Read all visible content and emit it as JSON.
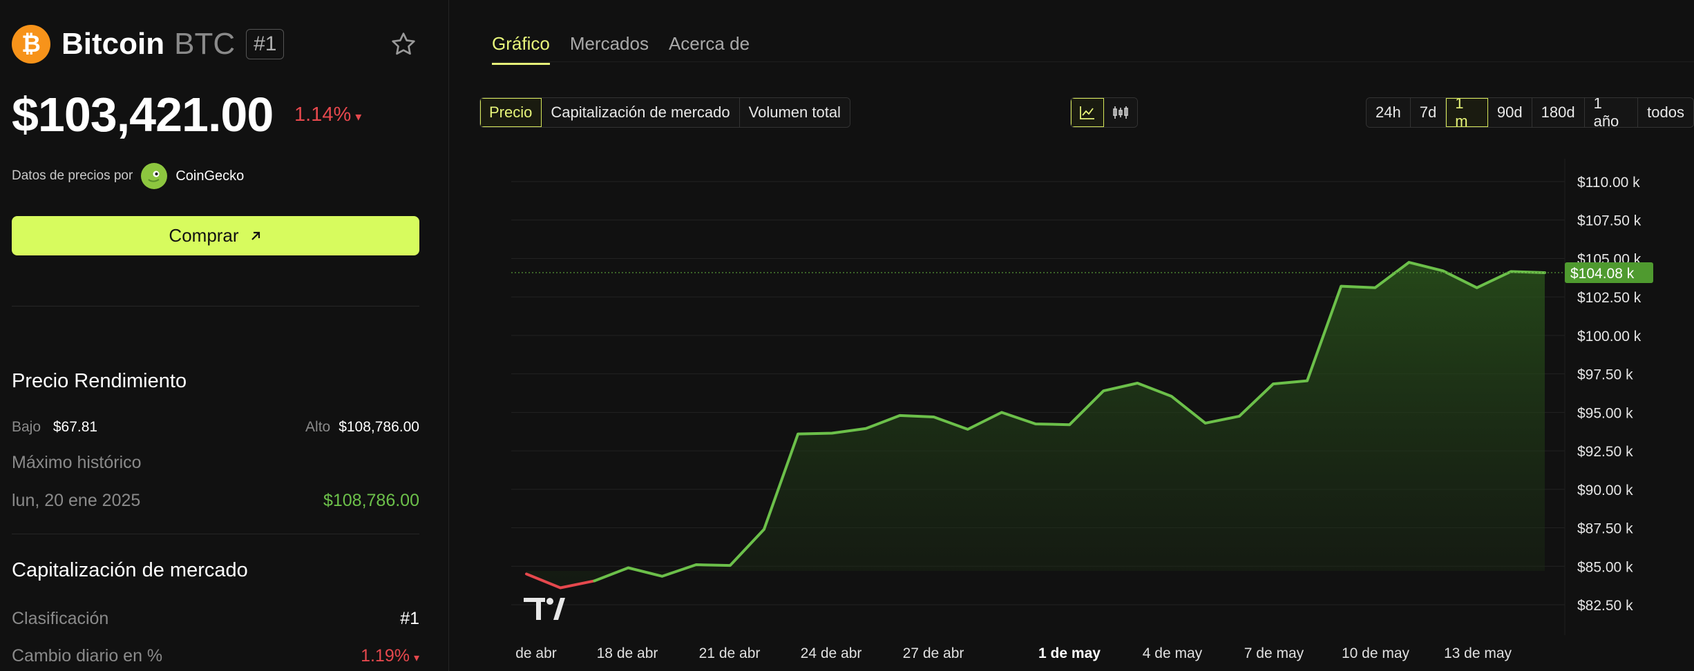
{
  "coin": {
    "name": "Bitcoin",
    "symbol": "BTC",
    "rank_badge": "#1",
    "logo_glyph": "₿",
    "price": "$103,421.00",
    "change": "1.14%",
    "change_arrow": "▾"
  },
  "provider": {
    "prefix": "Datos de precios por",
    "name": "CoinGecko"
  },
  "buy_button": {
    "label": "Comprar"
  },
  "performance": {
    "title": "Precio Rendimiento",
    "low_label": "Bajo",
    "low_value": "$67.81",
    "high_label": "Alto",
    "high_value": "$108,786.00",
    "ath_label": "Máximo histórico",
    "ath_date": "lun, 20 ene 2025",
    "ath_value": "$108,786.00"
  },
  "market_cap": {
    "title": "Capitalización de mercado",
    "rank_label": "Clasificación",
    "rank_value": "#1",
    "daily_change_label": "Cambio diario en %",
    "daily_change_value": "1.19%",
    "daily_change_arrow": "▾"
  },
  "tabs": [
    "Gráfico",
    "Mercados",
    "Acerca de"
  ],
  "metric_segments": [
    "Precio",
    "Capitalización de mercado",
    "Volumen total"
  ],
  "chart_type_icons": [
    "line-chart-icon",
    "candlestick-icon"
  ],
  "ranges": [
    "24h",
    "7d",
    "1 m",
    "90d",
    "180d",
    "1 año",
    "todos"
  ],
  "colors": {
    "accent": "#d7fb5e",
    "up": "#6cc04a",
    "down": "#e5484d",
    "bitcoin": "#f7931a"
  },
  "chart_data": {
    "type": "line",
    "x_labels": [
      "de abr",
      "18 de abr",
      "21 de abr",
      "24 de abr",
      "27 de abr",
      "1 de may",
      "4 de may",
      "7 de may",
      "10 de may",
      "13 de may"
    ],
    "x_label_bold": "1 de may",
    "y_ticks": [
      "$110.00 k",
      "$107.50 k",
      "$105.00 k",
      "$102.50 k",
      "$100.00 k",
      "$97.50 k",
      "$95.00 k",
      "$92.50 k",
      "$90.00 k",
      "$87.50 k",
      "$85.00 k",
      "$82.50 k"
    ],
    "ylim": [
      82500,
      110000
    ],
    "last_price_label": "$104.08 k",
    "last_price": 104080,
    "series": [
      {
        "values": [
          84500,
          83600,
          84050,
          84900,
          84350,
          85100,
          85050,
          87400,
          93600,
          93650,
          93950,
          94800,
          94700,
          93900,
          95000,
          94250,
          94200,
          96400,
          96900,
          96050,
          94300,
          94750,
          96850,
          97050,
          103200,
          103100,
          104750,
          104200,
          103100,
          104150,
          104080
        ]
      }
    ],
    "down_segment_points": 3,
    "grid": true,
    "watermark": "TV"
  }
}
